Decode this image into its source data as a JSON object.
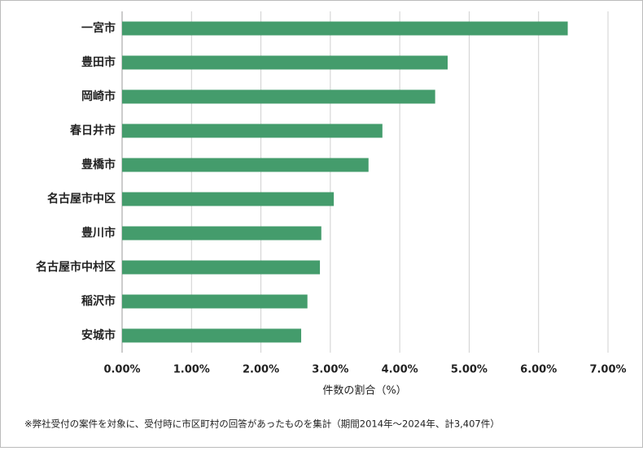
{
  "chart_data": {
    "type": "bar",
    "orientation": "horizontal",
    "categories": [
      "一宮市",
      "豊田市",
      "岡崎市",
      "春日井市",
      "豊橋市",
      "名古屋市中区",
      "豊川市",
      "名古屋市中村区",
      "稲沢市",
      "安城市"
    ],
    "values": [
      6.42,
      4.69,
      4.51,
      3.75,
      3.55,
      3.05,
      2.87,
      2.85,
      2.67,
      2.58
    ],
    "color": "#449c6c",
    "xlim": [
      0,
      7
    ],
    "xticks": [
      {
        "value": 0,
        "label": "0.00%"
      },
      {
        "value": 1,
        "label": "1.00%"
      },
      {
        "value": 2,
        "label": "2.00%"
      },
      {
        "value": 3,
        "label": "3.00%"
      },
      {
        "value": 4,
        "label": "4.00%"
      },
      {
        "value": 5,
        "label": "5.00%"
      },
      {
        "value": 6,
        "label": "6.00%"
      },
      {
        "value": 7,
        "label": "7.00%"
      }
    ],
    "xlabel": "件数の割合（%）",
    "grid": true,
    "footnote": "※弊社受付の案件を対象に、受付時に市区町村の回答があったものを集計（期間2014年～2024年、計3,407件）"
  }
}
